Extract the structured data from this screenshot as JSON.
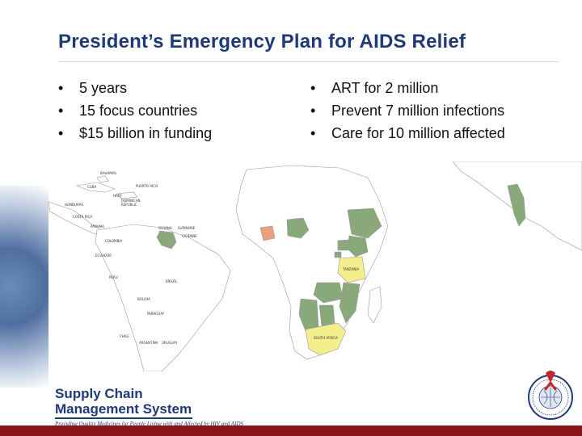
{
  "slide": {
    "title": "President’s Emergency Plan for AIDS Relief",
    "bullet_symbol": "•",
    "left_bullets": [
      "5 years",
      "15 focus countries",
      "$15 billion in funding"
    ],
    "right_bullets": [
      "ART for 2 million",
      "Prevent 7 million infections",
      "Care for 10 million affected"
    ]
  },
  "map": {
    "labels": {
      "bahamas": "BAHAMAS",
      "cuba": "CUBA",
      "haiti": "HAITI",
      "dominican": "DOMINICAN",
      "republic": "REPUBLIC",
      "puerto_rico": "PUERTO RICO",
      "honduras": "HONDURAS",
      "costa_rica": "COSTA RICA",
      "panama": "PANAMA",
      "colombia": "COLOMBIA",
      "guyana": "GUYANA",
      "suriname": "SURINAME",
      "cayenne": "CAYENNE",
      "ecuador": "ECUADOR",
      "peru": "PERU",
      "brazil": "BRAZIL",
      "bolivia": "BOLIVIA",
      "paraguay": "PARAGUAY",
      "chile": "CHILE",
      "argentina": "ARGENTINA",
      "uruguay": "URUGUAY",
      "tanzania": "TANZANIA",
      "south_africa": "SOUTH AFRICA"
    },
    "colors": {
      "focus_country": "#8aa97a",
      "highlight_yellow": "#f4ef8e",
      "highlight_orange": "#e9a07e",
      "land": "#ffffff",
      "border": "#9a9a9a",
      "water": "#ffffff"
    }
  },
  "logo": {
    "line1": "Supply Chain",
    "line2": "Management System",
    "tagline": "Providing Quality Medicines for People Living with and Affected by HIV and AIDS"
  },
  "colors": {
    "title": "#1f3a78",
    "bottom_bar": "#8a1418",
    "logo": "#1f3a78"
  }
}
